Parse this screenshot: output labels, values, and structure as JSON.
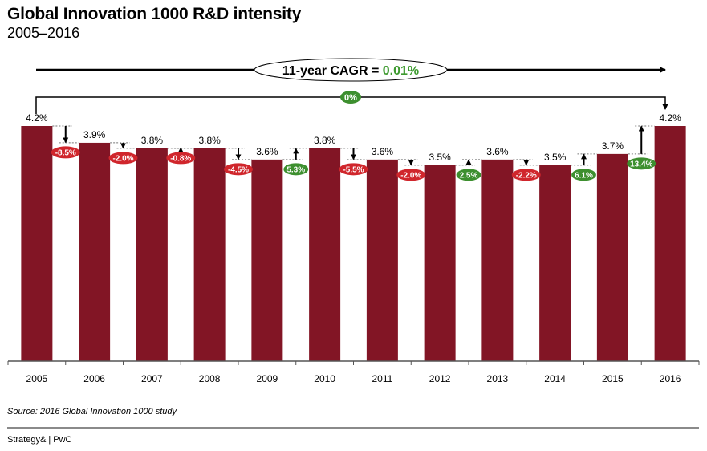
{
  "header": {
    "title": "Global Innovation 1000 R&D intensity",
    "subtitle": "2005–2016"
  },
  "colors": {
    "bar": "#821525",
    "positive": "#3d8f2f",
    "negative": "#d0262c",
    "cagr_value": "#3d9a2f"
  },
  "chart_data": {
    "type": "bar",
    "title": "Global Innovation 1000 R&D intensity",
    "subtitle": "2005–2016",
    "xlabel": "",
    "ylabel": "",
    "ylim": [
      0,
      4.2
    ],
    "grid": false,
    "categories": [
      "2005",
      "2006",
      "2007",
      "2008",
      "2009",
      "2010",
      "2011",
      "2012",
      "2013",
      "2014",
      "2015",
      "2016"
    ],
    "values": [
      4.2,
      3.9,
      3.8,
      3.8,
      3.6,
      3.8,
      3.6,
      3.5,
      3.6,
      3.5,
      3.7,
      4.2
    ],
    "value_labels": [
      "4.2%",
      "3.9%",
      "3.8%",
      "3.8%",
      "3.6%",
      "3.8%",
      "3.6%",
      "3.5%",
      "3.6%",
      "3.5%",
      "3.7%",
      "4.2%"
    ],
    "changes": [
      {
        "label": "-8.5%",
        "direction": "down"
      },
      {
        "label": "-2.0%",
        "direction": "down"
      },
      {
        "label": "-0.8%",
        "direction": "down"
      },
      {
        "label": "-4.5%",
        "direction": "down"
      },
      {
        "label": "5.3%",
        "direction": "up"
      },
      {
        "label": "-5.5%",
        "direction": "down"
      },
      {
        "label": "-2.0%",
        "direction": "down"
      },
      {
        "label": "2.5%",
        "direction": "up"
      },
      {
        "label": "-2.2%",
        "direction": "down"
      },
      {
        "label": "6.1%",
        "direction": "up"
      },
      {
        "label": "13.4%",
        "direction": "up"
      }
    ],
    "annotations": {
      "cagr_label": "11-year CAGR = ",
      "cagr_value": "0.01%",
      "overall_change": "0%"
    }
  },
  "footer": {
    "source": "Source: 2016 Global Innovation 1000 study",
    "brand": "Strategy& | PwC"
  }
}
